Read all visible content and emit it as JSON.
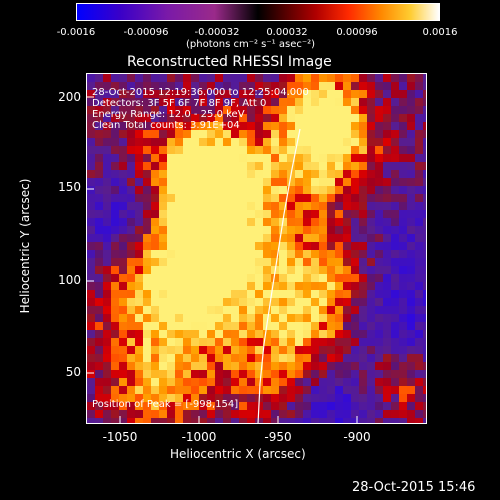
{
  "colorbar": {
    "ticks": [
      "-0.0016",
      "-0.00096",
      "-0.00032",
      "0.00032",
      "0.00096",
      "0.0016"
    ],
    "unit_label": "(photons cm⁻² s⁻¹ asec⁻²)"
  },
  "plot": {
    "title": "Reconstructed RHESSI Image",
    "xlabel": "Heliocentric X (arcsec)",
    "ylabel": "Heliocentric Y (arcsec)",
    "xticks": [
      "-1050",
      "-1000",
      "-950",
      "-900"
    ],
    "yticks": [
      "200",
      "150",
      "100",
      "50"
    ],
    "info": {
      "time": "28-Oct-2015 12:19:36.000 to 12:25:04.000",
      "detectors": "Detectors: 3F 5F 6F 7F 8F 9F, Att 0",
      "energy": "Energy Range: 12.0 - 25.0 keV",
      "clean": "Clean     Total counts: 3.91E+04"
    },
    "peak": "Position of Peak = [-998,154]"
  },
  "footer": {
    "timestamp": "28-Oct-2015 15:46"
  },
  "colors": {
    "accent": "#ffffff",
    "background": "#000000"
  }
}
